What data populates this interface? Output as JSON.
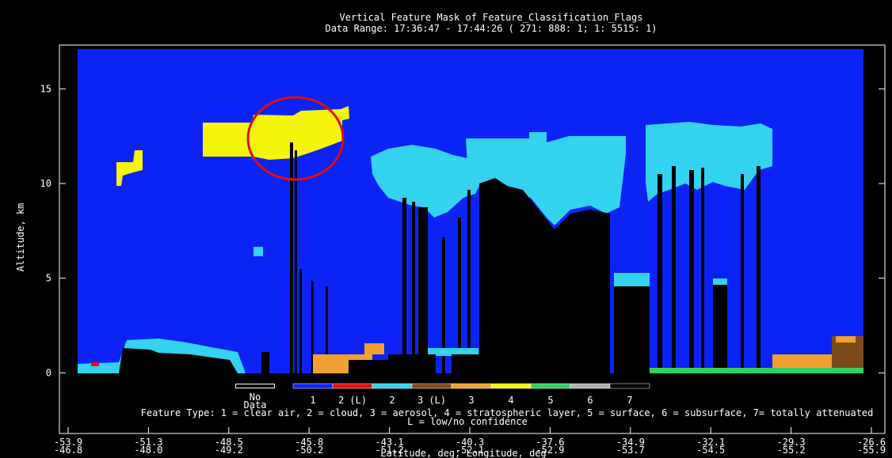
{
  "chart_data": {
    "type": "mask",
    "title": "Vertical Feature Mask of Feature_Classification_Flags",
    "subtitle": "Data Range: 17:36:47 - 17:44:26 ( 271: 888: 1; 1: 5515: 1)",
    "y_label": "Altitude, km",
    "x_label": "Latitude, deg; Longitude, deg",
    "ylim": [
      -3.2,
      17.1
    ],
    "yticks": [
      0,
      5,
      10,
      15
    ],
    "xtick_labels": [
      {
        "lat": "-53.9",
        "lon": "-46.8"
      },
      {
        "lat": "-51.3",
        "lon": "-48.0"
      },
      {
        "lat": "-48.5",
        "lon": "-49.2"
      },
      {
        "lat": "-45.8",
        "lon": "-50.2"
      },
      {
        "lat": "-43.1",
        "lon": "-51.2"
      },
      {
        "lat": "-40.3",
        "lon": "-52.1"
      },
      {
        "lat": "-37.6",
        "lon": "-52.9"
      },
      {
        "lat": "-34.9",
        "lon": "-53.7"
      },
      {
        "lat": "-32.1",
        "lon": "-54.5"
      },
      {
        "lat": "-29.3",
        "lon": "-55.2"
      },
      {
        "lat": "-26.6",
        "lon": "-55.9"
      }
    ],
    "legend": {
      "no_data_lines": [
        "No",
        "Data"
      ],
      "entries": [
        {
          "label": "1",
          "color": "#0b24f5"
        },
        {
          "label": "2 (L)",
          "color": "#e01010"
        },
        {
          "label": "2",
          "color": "#33d2ee"
        },
        {
          "label": "3 (L)",
          "color": "#7a4a1a"
        },
        {
          "label": "3",
          "color": "#f0a030"
        },
        {
          "label": "4",
          "color": "#f5f50a"
        },
        {
          "label": "5",
          "color": "#30d060"
        },
        {
          "label": "6",
          "color": "#b0b0b0"
        },
        {
          "label": "7",
          "color": "#000000"
        }
      ]
    },
    "footnote": [
      "Feature Type: 1 = clear air, 2 = cloud, 3 = aerosol, 4 = stratospheric layer, 5 = surface, 6 = subsurface, 7= totally attenuated",
      "L = low/no confidence"
    ]
  }
}
